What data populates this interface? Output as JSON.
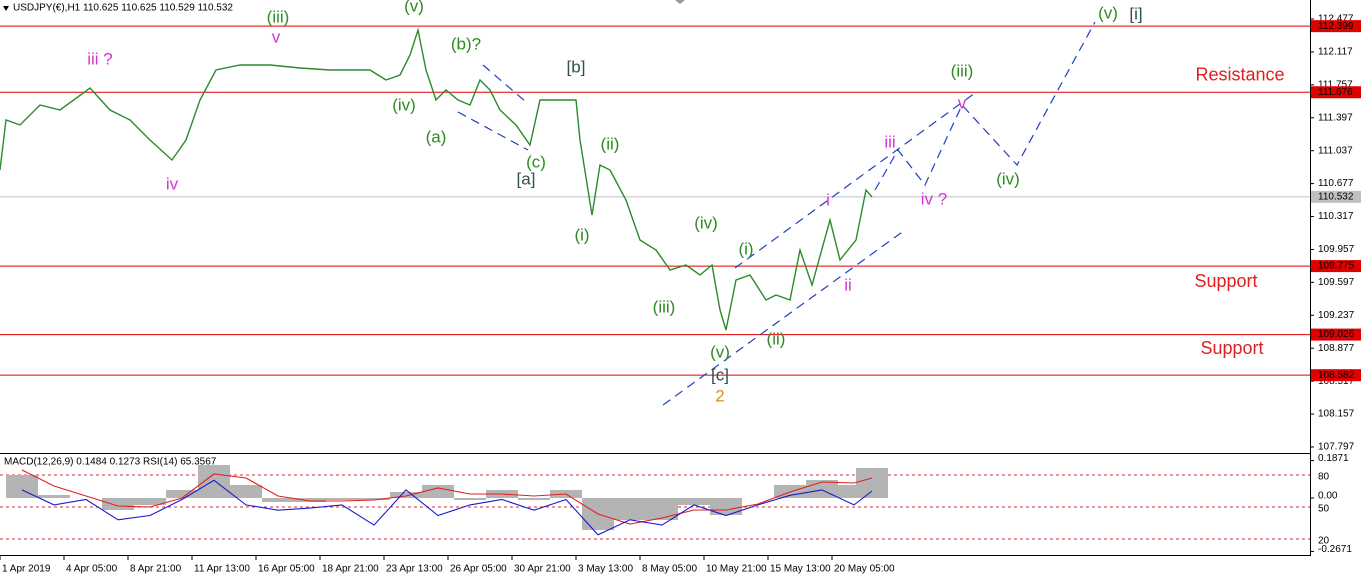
{
  "chart_data": [
    {
      "type": "line",
      "title": "USDJPY(€),H1  110.625 110.625 110.529 110.532",
      "color": "#2b8a2b",
      "x": [
        -11,
        -8,
        -1,
        9,
        19,
        34,
        44,
        54,
        64,
        75,
        82,
        89,
        97,
        109,
        124,
        139,
        154,
        174,
        182,
        189,
        194,
        198,
        202,
        207,
        212,
        218,
        224,
        229,
        234,
        239,
        247,
        254,
        259,
        269,
        277,
        279,
        283,
        285,
        289,
        294,
        302,
        309,
        317,
        324,
        332,
        339,
        345,
        349,
        352,
        357,
        364,
        372,
        377,
        384,
        389,
        395,
        404,
        409,
        417,
        422,
        425
      ],
      "values": [
        110.826,
        111.373,
        111.318,
        111.537,
        111.482,
        111.723,
        111.482,
        111.373,
        111.154,
        110.935,
        111.154,
        111.591,
        111.919,
        111.974,
        111.974,
        111.941,
        111.919,
        111.919,
        111.81,
        111.865,
        112.083,
        112.357,
        111.919,
        111.591,
        111.701,
        111.591,
        111.537,
        111.81,
        111.701,
        111.482,
        111.318,
        111.099,
        111.591,
        111.591,
        111.591,
        111.154,
        110.607,
        110.334,
        110.88,
        110.826,
        110.498,
        110.06,
        109.951,
        109.732,
        109.787,
        109.678,
        109.787,
        109.295,
        109.076,
        109.623,
        109.678,
        109.404,
        109.459,
        109.404,
        109.951,
        109.568,
        110.279,
        109.842,
        110.06,
        110.607,
        110.532
      ],
      "xlim": [
        -11,
        644
      ],
      "xticks": [
        {
          "value": -11,
          "label": "1 Apr 2019"
        },
        {
          "value": 21,
          "label": "4 Apr 05:00"
        },
        {
          "value": 53,
          "label": "8 Apr 21:00"
        },
        {
          "value": 85,
          "label": "11 Apr 13:00"
        },
        {
          "value": 117,
          "label": "16 Apr 05:00"
        },
        {
          "value": 149,
          "label": "18 Apr 21:00"
        },
        {
          "value": 181,
          "label": "23 Apr 13:00"
        },
        {
          "value": 213,
          "label": "26 Apr 05:00"
        },
        {
          "value": 245,
          "label": "30 Apr 21:00"
        },
        {
          "value": 277,
          "label": "3 May 13:00"
        },
        {
          "value": 309,
          "label": "8 May 05:00"
        },
        {
          "value": 341,
          "label": "10 May 21:00"
        },
        {
          "value": 373,
          "label": "15 May 13:00"
        },
        {
          "value": 405,
          "label": "20 May 05:00"
        }
      ],
      "ylim": [
        107.731,
        112.663
      ],
      "yticks": [
        112.477,
        112.117,
        111.757,
        111.397,
        111.037,
        110.677,
        110.317,
        109.957,
        109.597,
        109.237,
        108.877,
        108.517,
        108.157,
        107.797
      ],
      "levels": [
        {
          "value": 112.399,
          "color": "#e00000"
        },
        {
          "value": 111.676,
          "color": "#e00000"
        },
        {
          "value": 109.775,
          "color": "#e00000"
        },
        {
          "value": 109.026,
          "color": "#e00000"
        },
        {
          "value": 108.582,
          "color": "#e00000"
        },
        {
          "value": 110.532,
          "color": "#c0c0c0"
        }
      ],
      "annotations": [
        {
          "text": "iii ?",
          "x": 39,
          "y": 112.029,
          "color": "#d633d6"
        },
        {
          "text": "iv",
          "x": 75,
          "y": 110.662,
          "color": "#d633d6"
        },
        {
          "text": "v",
          "x": 127,
          "y": 112.269,
          "color": "#d633d6"
        },
        {
          "text": "(iii)",
          "x": 128,
          "y": 112.488,
          "color": "#2e8b22"
        },
        {
          "text": "(v)",
          "x": 196,
          "y": 112.608,
          "color": "#2e8b22"
        },
        {
          "text": "(iv)",
          "x": 191,
          "y": 111.526,
          "color": "#2e8b22"
        },
        {
          "text": "(a)",
          "x": 207,
          "y": 111.176,
          "color": "#2e8b22"
        },
        {
          "text": "(b)?",
          "x": 222,
          "y": 112.193,
          "color": "#2e8b22"
        },
        {
          "text": "(c)",
          "x": 257,
          "y": 110.902,
          "color": "#2e8b22"
        },
        {
          "text": "[a]",
          "x": 252,
          "y": 110.716,
          "color": "#2f4f4f"
        },
        {
          "text": "[b]",
          "x": 277,
          "y": 111.941,
          "color": "#2f4f4f"
        },
        {
          "text": "(ii)",
          "x": 294,
          "y": 111.099,
          "color": "#2e8b22"
        },
        {
          "text": "(i)",
          "x": 280,
          "y": 110.104,
          "color": "#2e8b22"
        },
        {
          "text": "(iv)",
          "x": 342,
          "y": 110.235,
          "color": "#2e8b22"
        },
        {
          "text": "(iii)",
          "x": 321,
          "y": 109.317,
          "color": "#2e8b22"
        },
        {
          "text": "(v)",
          "x": 349,
          "y": 108.825,
          "color": "#2e8b22"
        },
        {
          "text": "[c]",
          "x": 349,
          "y": 108.573,
          "color": "#2f4f4f"
        },
        {
          "text": "2",
          "x": 349,
          "y": 108.344,
          "color": "#d4901a"
        },
        {
          "text": "(i)",
          "x": 362,
          "y": 109.951,
          "color": "#2e8b22"
        },
        {
          "text": "(ii)",
          "x": 377,
          "y": 108.967,
          "color": "#2e8b22"
        },
        {
          "text": "i",
          "x": 403,
          "y": 110.487,
          "color": "#d633d6"
        },
        {
          "text": "ii",
          "x": 413,
          "y": 109.557,
          "color": "#d633d6"
        },
        {
          "text": "iii",
          "x": 434,
          "y": 111.121,
          "color": "#d633d6"
        },
        {
          "text": "iv ?",
          "x": 456,
          "y": 110.498,
          "color": "#d633d6"
        },
        {
          "text": "v",
          "x": 470,
          "y": 111.548,
          "color": "#d633d6"
        },
        {
          "text": "(iii)",
          "x": 470,
          "y": 111.897,
          "color": "#2e8b22"
        },
        {
          "text": "(iv)",
          "x": 493,
          "y": 110.716,
          "color": "#2e8b22"
        },
        {
          "text": "(v)",
          "x": 543,
          "y": 112.532,
          "color": "#2e8b22"
        },
        {
          "text": "[i]",
          "x": 557,
          "y": 112.521,
          "color": "#2f4f4f"
        },
        {
          "text": "Resistance",
          "x": 609,
          "y": 111.854,
          "color": "#e02020"
        },
        {
          "text": "Support",
          "x": 602,
          "y": 109.601,
          "color": "#e02020"
        },
        {
          "text": "Support",
          "x": 605,
          "y": 108.868,
          "color": "#e02020"
        }
      ]
    },
    {
      "type": "combo",
      "title": "MACD(12,26,9) 0.1484 0.1273  RSI(14) 65.3567",
      "x": [
        0,
        16,
        32,
        48,
        64,
        80,
        96,
        112,
        128,
        144,
        160,
        176,
        192,
        208,
        224,
        240,
        256,
        272,
        288,
        304,
        320,
        336,
        352,
        368,
        384,
        400,
        416,
        425
      ],
      "xlim": [
        -11,
        644
      ],
      "ylim": [
        6.9,
        97.8
      ],
      "yticks": [
        80,
        50,
        20
      ],
      "y2lim": [
        -0.275,
        0.21
      ],
      "y2ticks": [
        0.1871,
        {
          "value": 0,
          "label": "0.00"
        },
        -0.2671
      ],
      "series": [
        {
          "style": "bar",
          "axis": "y2",
          "color": "#b4b4b4",
          "values": [
            0.115,
            0.015,
            0,
            -0.06,
            -0.035,
            0.04,
            0.165,
            0.065,
            -0.02,
            -0.02,
            -0.01,
            -0.01,
            0.03,
            0.065,
            -0.01,
            0.04,
            -0.01,
            0.04,
            -0.16,
            -0.11,
            -0.11,
            -0.035,
            -0.085,
            0,
            0.065,
            0.09,
            0.065,
            0.15
          ]
        },
        {
          "style": "line",
          "axis": "y2",
          "color": "#e02020",
          "values": [
            0.14,
            0.06,
            0.01,
            -0.04,
            -0.045,
            0,
            0.12,
            0.1,
            0.01,
            -0.015,
            -0.015,
            -0.01,
            0.01,
            0.05,
            0.02,
            0.02,
            0.01,
            0.02,
            -0.08,
            -0.13,
            -0.1,
            -0.06,
            -0.06,
            -0.03,
            0.03,
            0.08,
            0.075,
            0.1
          ]
        },
        {
          "style": "line",
          "color": "#1a1ad0",
          "values": [
            66,
            52,
            57,
            38,
            42,
            57,
            75,
            52,
            47,
            49,
            52,
            33,
            66,
            42,
            52,
            57,
            47,
            57,
            24,
            38,
            33,
            52,
            42,
            52,
            61,
            66,
            52,
            65
          ]
        }
      ]
    }
  ]
}
